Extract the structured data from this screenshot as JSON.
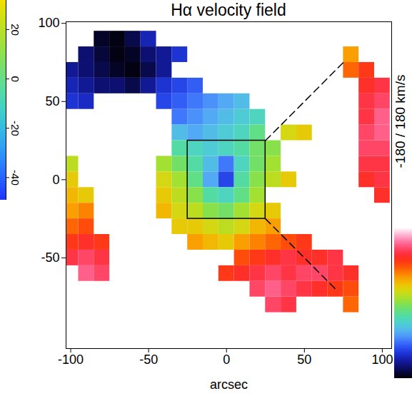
{
  "chart_data": [
    {
      "type": "heatmap",
      "title": "Hα velocity field",
      "xlabel": "arcsec",
      "xlim": [
        -103,
        106
      ],
      "ylim": [
        -108,
        101
      ],
      "xticks": [
        -100,
        -50,
        0,
        50,
        100
      ],
      "yticks": [
        -50,
        0,
        50,
        100
      ],
      "grid": false,
      "cell_size": 10,
      "colorbar": {
        "range": [
          -180,
          180
        ],
        "label": "-180 / 180 km/s"
      },
      "box": {
        "x": [
          -25,
          25
        ],
        "y": [
          -25,
          25
        ]
      },
      "leader_lines": [
        [
          [
            25,
            25
          ],
          [
            75,
            75
          ]
        ],
        [
          [
            25,
            -25
          ],
          [
            70,
            -70
          ]
        ]
      ],
      "cells": [
        [
          -80,
          90,
          -170
        ],
        [
          -70,
          90,
          -175
        ],
        [
          -60,
          90,
          -160
        ],
        [
          -50,
          90,
          -130
        ],
        [
          -90,
          80,
          -150
        ],
        [
          -80,
          80,
          -165
        ],
        [
          -70,
          80,
          -175
        ],
        [
          -60,
          80,
          -170
        ],
        [
          -50,
          80,
          -150
        ],
        [
          -40,
          80,
          -140
        ],
        [
          -30,
          80,
          -120
        ],
        [
          80,
          80,
          60
        ],
        [
          -100,
          70,
          -140
        ],
        [
          -90,
          70,
          -150
        ],
        [
          -80,
          70,
          -160
        ],
        [
          -70,
          70,
          -170
        ],
        [
          -60,
          70,
          -175
        ],
        [
          -50,
          70,
          -160
        ],
        [
          -40,
          70,
          -140
        ],
        [
          80,
          70,
          80
        ],
        [
          90,
          70,
          100
        ],
        [
          -100,
          60,
          -130
        ],
        [
          -90,
          60,
          -140
        ],
        [
          -80,
          60,
          -150
        ],
        [
          -70,
          60,
          -150
        ],
        [
          -60,
          60,
          -160
        ],
        [
          -50,
          60,
          -140
        ],
        [
          -40,
          60,
          -120
        ],
        [
          -30,
          60,
          -110
        ],
        [
          -20,
          60,
          -100
        ],
        [
          90,
          60,
          110
        ],
        [
          100,
          60,
          120
        ],
        [
          -100,
          50,
          -120
        ],
        [
          -90,
          50,
          -125
        ],
        [
          -40,
          50,
          -110
        ],
        [
          -30,
          50,
          -100
        ],
        [
          -20,
          50,
          -90
        ],
        [
          -10,
          50,
          -80
        ],
        [
          0,
          50,
          -70
        ],
        [
          10,
          50,
          -60
        ],
        [
          90,
          50,
          120
        ],
        [
          100,
          50,
          130
        ],
        [
          -30,
          40,
          -90
        ],
        [
          -20,
          40,
          -80
        ],
        [
          -10,
          40,
          -70
        ],
        [
          0,
          40,
          -60
        ],
        [
          10,
          40,
          -50
        ],
        [
          20,
          40,
          -40
        ],
        [
          90,
          40,
          120
        ],
        [
          100,
          40,
          140
        ],
        [
          -30,
          30,
          -60
        ],
        [
          -20,
          30,
          -70
        ],
        [
          -10,
          30,
          -60
        ],
        [
          0,
          30,
          -50
        ],
        [
          10,
          30,
          -40
        ],
        [
          20,
          30,
          -20
        ],
        [
          40,
          30,
          30
        ],
        [
          50,
          30,
          40
        ],
        [
          90,
          30,
          130
        ],
        [
          100,
          30,
          140
        ],
        [
          -30,
          20,
          -30
        ],
        [
          -20,
          20,
          -40
        ],
        [
          -10,
          20,
          -50
        ],
        [
          0,
          20,
          -40
        ],
        [
          10,
          20,
          -30
        ],
        [
          20,
          20,
          -10
        ],
        [
          30,
          20,
          0
        ],
        [
          90,
          20,
          130
        ],
        [
          100,
          20,
          130
        ],
        [
          -100,
          10,
          20
        ],
        [
          -40,
          10,
          10
        ],
        [
          -30,
          10,
          -10
        ],
        [
          -20,
          10,
          -30
        ],
        [
          -10,
          10,
          -60
        ],
        [
          0,
          10,
          -90
        ],
        [
          10,
          10,
          -40
        ],
        [
          20,
          10,
          -10
        ],
        [
          30,
          10,
          10
        ],
        [
          90,
          10,
          120
        ],
        [
          100,
          10,
          120
        ],
        [
          -100,
          0,
          40
        ],
        [
          -40,
          0,
          30
        ],
        [
          -30,
          0,
          10
        ],
        [
          -20,
          0,
          -20
        ],
        [
          -10,
          0,
          -70
        ],
        [
          0,
          0,
          -110
        ],
        [
          10,
          0,
          -30
        ],
        [
          20,
          0,
          0
        ],
        [
          30,
          0,
          20
        ],
        [
          40,
          0,
          40
        ],
        [
          90,
          0,
          110
        ],
        [
          100,
          0,
          120
        ],
        [
          -100,
          -10,
          50
        ],
        [
          -90,
          -10,
          40
        ],
        [
          -40,
          -10,
          40
        ],
        [
          -30,
          -10,
          20
        ],
        [
          -20,
          -10,
          0
        ],
        [
          -10,
          -10,
          -30
        ],
        [
          0,
          -10,
          -40
        ],
        [
          10,
          -10,
          -20
        ],
        [
          20,
          -10,
          10
        ],
        [
          100,
          -10,
          110
        ],
        [
          -100,
          -20,
          60
        ],
        [
          -90,
          -20,
          70
        ],
        [
          -40,
          -20,
          50
        ],
        [
          -30,
          -20,
          30
        ],
        [
          -20,
          -20,
          20
        ],
        [
          -10,
          -20,
          0
        ],
        [
          0,
          -20,
          -10
        ],
        [
          10,
          -20,
          10
        ],
        [
          20,
          -20,
          30
        ],
        [
          30,
          -20,
          40
        ],
        [
          -100,
          -30,
          80
        ],
        [
          -90,
          -30,
          90
        ],
        [
          -30,
          -30,
          40
        ],
        [
          -20,
          -30,
          40
        ],
        [
          -10,
          -30,
          30
        ],
        [
          0,
          -30,
          20
        ],
        [
          10,
          -30,
          30
        ],
        [
          20,
          -30,
          50
        ],
        [
          30,
          -30,
          60
        ],
        [
          -100,
          -40,
          100
        ],
        [
          -90,
          -40,
          110
        ],
        [
          -80,
          -40,
          100
        ],
        [
          -20,
          -40,
          60
        ],
        [
          -10,
          -40,
          50
        ],
        [
          0,
          -40,
          40
        ],
        [
          10,
          -40,
          60
        ],
        [
          20,
          -40,
          70
        ],
        [
          30,
          -40,
          80
        ],
        [
          40,
          -40,
          90
        ],
        [
          50,
          -40,
          100
        ],
        [
          -100,
          -50,
          120
        ],
        [
          -90,
          -50,
          130
        ],
        [
          -80,
          -50,
          120
        ],
        [
          10,
          -50,
          90
        ],
        [
          20,
          -50,
          100
        ],
        [
          30,
          -50,
          110
        ],
        [
          40,
          -50,
          120
        ],
        [
          50,
          -50,
          110
        ],
        [
          60,
          -50,
          110
        ],
        [
          70,
          -50,
          120
        ],
        [
          -90,
          -60,
          140
        ],
        [
          -80,
          -60,
          130
        ],
        [
          0,
          -60,
          100
        ],
        [
          10,
          -60,
          110
        ],
        [
          20,
          -60,
          120
        ],
        [
          30,
          -60,
          130
        ],
        [
          40,
          -60,
          120
        ],
        [
          50,
          -60,
          130
        ],
        [
          60,
          -60,
          130
        ],
        [
          70,
          -60,
          120
        ],
        [
          80,
          -60,
          110
        ],
        [
          20,
          -70,
          130
        ],
        [
          30,
          -70,
          140
        ],
        [
          40,
          -70,
          130
        ],
        [
          50,
          -70,
          120
        ],
        [
          60,
          -70,
          110
        ],
        [
          70,
          -70,
          100
        ],
        [
          80,
          -70,
          90
        ],
        [
          30,
          -80,
          130
        ],
        [
          40,
          -80,
          120
        ],
        [
          80,
          -80,
          80
        ]
      ]
    },
    {
      "type": "colorbar",
      "ylim": [
        -49,
        32
      ],
      "yticks": [
        20,
        0,
        -20,
        -40
      ]
    }
  ]
}
